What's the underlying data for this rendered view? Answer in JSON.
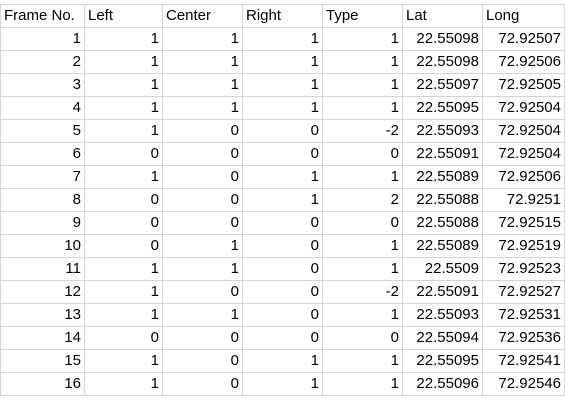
{
  "headers": [
    "Frame No.",
    "Left",
    "Center",
    "Right",
    "Type",
    "Lat",
    "Long"
  ],
  "rows": [
    [
      "1",
      "1",
      "1",
      "1",
      "1",
      "22.55098",
      "72.92507"
    ],
    [
      "2",
      "1",
      "1",
      "1",
      "1",
      "22.55098",
      "72.92506"
    ],
    [
      "3",
      "1",
      "1",
      "1",
      "1",
      "22.55097",
      "72.92505"
    ],
    [
      "4",
      "1",
      "1",
      "1",
      "1",
      "22.55095",
      "72.92504"
    ],
    [
      "5",
      "1",
      "0",
      "0",
      "-2",
      "22.55093",
      "72.92504"
    ],
    [
      "6",
      "0",
      "0",
      "0",
      "0",
      "22.55091",
      "72.92504"
    ],
    [
      "7",
      "1",
      "0",
      "1",
      "1",
      "22.55089",
      "72.92506"
    ],
    [
      "8",
      "0",
      "0",
      "1",
      "2",
      "22.55088",
      "72.9251"
    ],
    [
      "9",
      "0",
      "0",
      "0",
      "0",
      "22.55088",
      "72.92515"
    ],
    [
      "10",
      "0",
      "1",
      "0",
      "1",
      "22.55089",
      "72.92519"
    ],
    [
      "11",
      "1",
      "1",
      "0",
      "1",
      "22.5509",
      "72.92523"
    ],
    [
      "12",
      "1",
      "0",
      "0",
      "-2",
      "22.55091",
      "72.92527"
    ],
    [
      "13",
      "1",
      "1",
      "0",
      "1",
      "22.55093",
      "72.92531"
    ],
    [
      "14",
      "0",
      "0",
      "0",
      "0",
      "22.55094",
      "72.92536"
    ],
    [
      "15",
      "1",
      "0",
      "1",
      "1",
      "22.55095",
      "72.92541"
    ],
    [
      "16",
      "1",
      "0",
      "1",
      "1",
      "22.55096",
      "72.92546"
    ]
  ]
}
